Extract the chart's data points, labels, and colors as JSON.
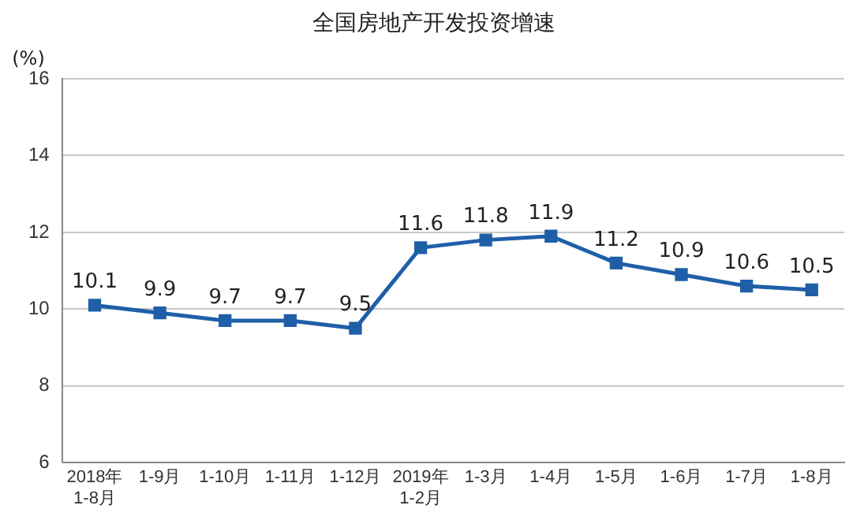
{
  "chart_data": {
    "type": "line",
    "title": "全国房地产开发投资增速",
    "ylabel": "(%)",
    "categories": [
      "2018年\n1-8月",
      "1-9月",
      "1-10月",
      "1-11月",
      "1-12月",
      "2019年\n1-2月",
      "1-3月",
      "1-4月",
      "1-5月",
      "1-6月",
      "1-7月",
      "1-8月"
    ],
    "values": [
      10.1,
      9.9,
      9.7,
      9.7,
      9.5,
      11.6,
      11.8,
      11.9,
      11.2,
      10.9,
      10.6,
      10.5
    ],
    "color": "#1f5fa8",
    "ylim": [
      6,
      16
    ],
    "yticks": [
      6,
      8,
      10,
      12,
      14,
      16
    ],
    "grid": "y",
    "marker": "square",
    "data_labels": true,
    "legend": false
  }
}
